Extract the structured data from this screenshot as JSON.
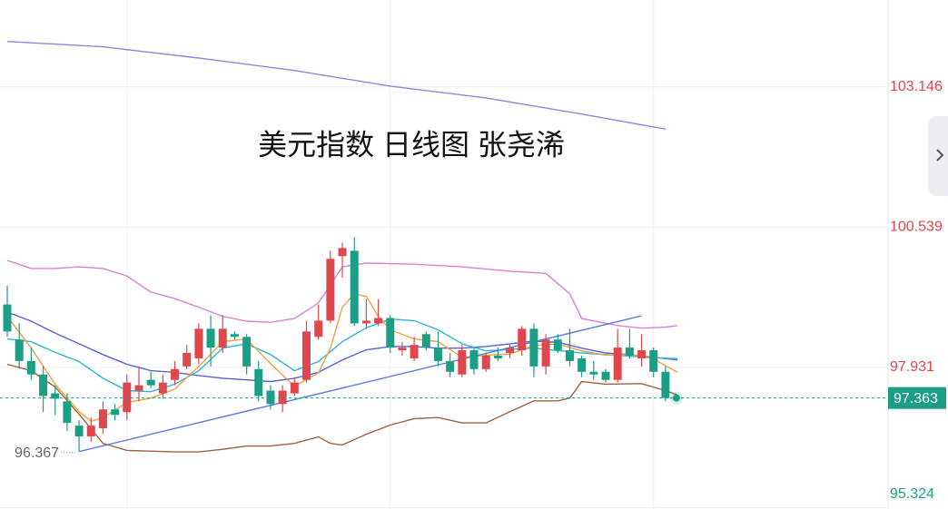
{
  "chart_data": {
    "type": "candlestick",
    "title": "美元指数 日线图 张尧浠",
    "open": [
      99.1,
      98.45,
      98.05,
      97.8,
      97.45,
      97.3,
      96.85,
      96.65,
      96.8,
      97.15,
      97.1,
      97.5,
      97.7,
      97.45,
      97.7,
      97.95,
      98.1,
      98.65,
      98.3,
      98.55,
      98.5,
      97.9,
      97.5,
      97.25,
      97.45,
      97.7,
      98.5,
      98.8,
      100.0,
      100.1,
      98.75,
      98.75,
      98.85,
      98.25,
      98.1,
      98.55,
      98.3,
      98.05,
      97.8,
      98.25,
      97.9,
      98.15,
      98.2,
      98.25,
      98.65,
      97.95,
      98.45,
      98.25,
      98.1,
      97.85,
      97.85,
      97.7,
      98.3,
      98.1,
      98.25,
      97.85
    ],
    "high": [
      99.45,
      98.75,
      98.3,
      97.95,
      97.6,
      97.45,
      96.95,
      97.0,
      97.3,
      97.25,
      97.8,
      97.95,
      97.85,
      97.8,
      98.05,
      98.35,
      98.75,
      98.9,
      98.9,
      98.6,
      98.55,
      98.05,
      97.6,
      97.6,
      97.75,
      98.8,
      99.1,
      100.1,
      100.25,
      100.35,
      99.2,
      99.2,
      98.9,
      98.4,
      98.5,
      98.6,
      98.6,
      98.2,
      98.35,
      98.3,
      98.2,
      98.3,
      98.35,
      98.7,
      98.75,
      98.55,
      98.55,
      98.65,
      98.15,
      98.05,
      97.9,
      98.65,
      98.65,
      98.55,
      98.3,
      97.95
    ],
    "low": [
      98.5,
      97.9,
      97.7,
      97.1,
      97.05,
      96.75,
      96.367,
      96.55,
      96.7,
      96.95,
      96.95,
      97.3,
      97.55,
      97.35,
      97.6,
      97.9,
      98.0,
      97.95,
      98.2,
      98.45,
      97.8,
      97.3,
      97.15,
      97.1,
      97.4,
      97.65,
      98.45,
      98.75,
      99.6,
      98.7,
      98.65,
      98.7,
      98.2,
      98.15,
      98.05,
      98.25,
      97.95,
      97.75,
      97.75,
      97.8,
      97.85,
      98.05,
      98.1,
      98.15,
      97.75,
      97.8,
      98.2,
      97.95,
      97.75,
      97.7,
      97.65,
      97.65,
      98.1,
      97.95,
      97.75,
      97.3
    ],
    "close": [
      98.6,
      98.05,
      97.8,
      97.4,
      97.35,
      96.9,
      96.65,
      96.85,
      97.15,
      97.05,
      97.65,
      97.6,
      97.6,
      97.65,
      97.9,
      98.2,
      98.65,
      98.3,
      98.65,
      98.5,
      97.95,
      97.4,
      97.25,
      97.5,
      97.65,
      98.6,
      98.8,
      99.95,
      100.15,
      98.75,
      98.8,
      98.85,
      98.3,
      98.3,
      98.35,
      98.3,
      98.05,
      97.85,
      98.25,
      97.9,
      98.15,
      98.1,
      98.3,
      98.65,
      97.95,
      98.45,
      98.25,
      98.05,
      97.85,
      97.8,
      97.7,
      98.3,
      98.15,
      98.25,
      97.85,
      97.363
    ],
    "up_color": "#e0474c",
    "down_color": "#1a9e86",
    "overlays": [
      {
        "color": "#9b7fe0",
        "x": [
          0,
          8,
          16,
          24,
          32,
          40,
          48,
          55
        ],
        "values": [
          103.99,
          103.89,
          103.68,
          103.45,
          103.16,
          102.94,
          102.64,
          102.36
        ]
      },
      {
        "color": "#de7fd0",
        "x": [
          0,
          2,
          4,
          6,
          8,
          10,
          12,
          14,
          16,
          18,
          20,
          22,
          24,
          26,
          28,
          30,
          34,
          38,
          42,
          45,
          47,
          48,
          51,
          53,
          55,
          56
        ],
        "values": [
          99.92,
          99.77,
          99.77,
          99.8,
          99.77,
          99.63,
          99.33,
          99.21,
          99.05,
          98.88,
          98.79,
          98.77,
          98.84,
          99.13,
          99.8,
          99.87,
          99.85,
          99.8,
          99.72,
          99.68,
          99.3,
          98.84,
          98.71,
          98.66,
          98.68,
          98.71
        ]
      },
      {
        "color": "#a0603a",
        "x": [
          0,
          2,
          4,
          6,
          8,
          10,
          14,
          16,
          18,
          20,
          22,
          24,
          26,
          27,
          28,
          30,
          32,
          34,
          36,
          38,
          40,
          42,
          44,
          46,
          47,
          48,
          50,
          53,
          55,
          56
        ],
        "values": [
          97.99,
          97.87,
          97.57,
          97.06,
          96.52,
          96.39,
          96.36,
          96.36,
          96.41,
          96.47,
          96.47,
          96.52,
          96.64,
          96.52,
          96.49,
          96.69,
          96.86,
          96.98,
          97.0,
          96.9,
          96.9,
          97.11,
          97.31,
          97.31,
          97.36,
          97.67,
          97.62,
          97.63,
          97.5,
          97.42
        ]
      },
      {
        "color": "#5560e0",
        "x": [
          0,
          2,
          4,
          6,
          8,
          10,
          12,
          14,
          16,
          18,
          20,
          22,
          24,
          26,
          28,
          30,
          32,
          34,
          36,
          38,
          40,
          42,
          44,
          46,
          48,
          50,
          52,
          54,
          56
        ],
        "values": [
          98.96,
          98.79,
          98.57,
          98.37,
          98.17,
          97.99,
          97.87,
          97.84,
          97.78,
          97.73,
          97.7,
          97.67,
          97.73,
          97.84,
          98.07,
          98.26,
          98.32,
          98.32,
          98.29,
          98.29,
          98.32,
          98.37,
          98.42,
          98.4,
          98.29,
          98.2,
          98.17,
          98.12,
          98.07
        ]
      },
      {
        "color": "#2ab7d0",
        "x": [
          0,
          2,
          4,
          6,
          8,
          10,
          12,
          14,
          16,
          18,
          20,
          22,
          24,
          26,
          28,
          30,
          32,
          34,
          36,
          38,
          40,
          44,
          48,
          52,
          56
        ],
        "values": [
          98.46,
          98.41,
          98.21,
          98.04,
          97.73,
          97.5,
          97.48,
          97.62,
          97.87,
          98.29,
          98.37,
          98.17,
          97.87,
          98.04,
          98.41,
          98.67,
          98.83,
          98.8,
          98.63,
          98.37,
          98.24,
          98.29,
          98.2,
          98.14,
          98.09
        ]
      },
      {
        "color": "#f0a040",
        "x": [
          0,
          2,
          4,
          6,
          7,
          8,
          10,
          12,
          14,
          16,
          18,
          20,
          22,
          24,
          26,
          27,
          28,
          29,
          30,
          31,
          32,
          34,
          36,
          38,
          40,
          42,
          44,
          46,
          48,
          50,
          52,
          54,
          56
        ],
        "values": [
          98.88,
          98.29,
          97.62,
          97.11,
          96.93,
          97.0,
          97.28,
          97.36,
          97.53,
          97.95,
          98.41,
          98.46,
          98.0,
          97.58,
          97.83,
          98.29,
          99.05,
          99.3,
          99.25,
          98.88,
          98.63,
          98.46,
          98.41,
          98.12,
          98.16,
          98.18,
          98.34,
          98.37,
          98.24,
          98.16,
          98.18,
          98.09,
          97.84
        ]
      },
      {
        "color": "#5a7be0",
        "x": [
          6,
          53
        ],
        "values": [
          96.367,
          98.89
        ]
      }
    ],
    "last_price": 97.363,
    "last_color": "#1a9e86",
    "low_marker": {
      "x": 6,
      "value": 96.367
    },
    "ylim": [
      95.3,
      104.76
    ],
    "yticks": [
      103.146,
      100.539,
      97.931,
      95.324
    ],
    "xgrid": [
      10,
      32,
      54
    ],
    "grid": true
  }
}
